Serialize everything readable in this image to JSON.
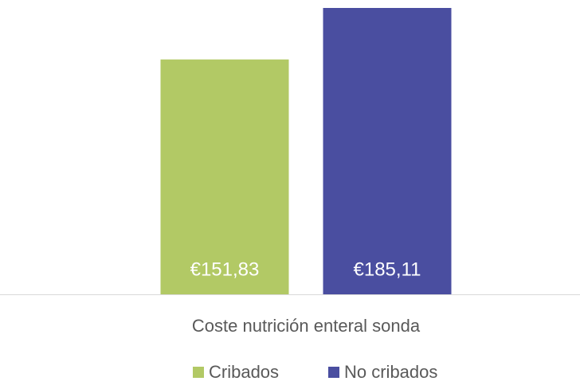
{
  "chart_data": {
    "type": "bar",
    "categories": [
      "Coste nutrición enteral sonda"
    ],
    "series": [
      {
        "name": "Cribados",
        "color": "#b2c965",
        "values": [
          151.83
        ],
        "value_labels": [
          "€151,83"
        ]
      },
      {
        "name": "No cribados",
        "color": "#4a4ea0",
        "values": [
          185.11
        ],
        "value_labels": [
          "€185,11"
        ]
      }
    ],
    "legend": "bottom"
  }
}
